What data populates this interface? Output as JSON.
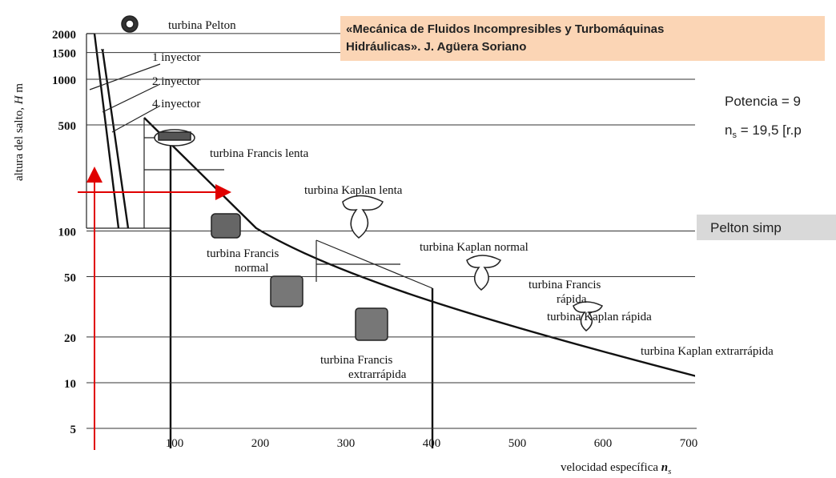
{
  "header": {
    "title_lines": [
      "«Mecánica de Fluidos Incompresibles y Turbomáquinas",
      "Hidráulicas». J. Agüera Soriano"
    ]
  },
  "overlay": {
    "power": "Potencia = 9",
    "ns_symbol": "n",
    "ns_sub": "s",
    "ns_value": " = 19,5 [r.p",
    "result": "Pelton simp"
  },
  "diagram": {
    "y_label": "altura del salto,",
    "y_symbol": "H",
    "y_unit": "m",
    "x_label": "velocidad específica",
    "x_symbol": "n",
    "x_sub": "s",
    "y_ticks": [
      2000,
      1500,
      1000,
      500,
      100,
      50,
      20,
      10,
      5
    ],
    "x_ticks": [
      100,
      200,
      300,
      400,
      500,
      600,
      700
    ],
    "labels": [
      [
        "turbina Pelton"
      ],
      [
        "1 inyector"
      ],
      [
        "2 inyector"
      ],
      [
        "4 inyector"
      ],
      [
        "turbina Francis lenta"
      ],
      [
        "turbina Kaplan lenta"
      ],
      [
        "turbina Francis",
        "normal"
      ],
      [
        "turbina Kaplan normal"
      ],
      [
        "turbina Francis",
        "rápida"
      ],
      [
        "turbina Kaplan rápida"
      ],
      [
        "turbina Francis",
        "extrarrápida"
      ],
      [
        "turbina Kaplan extrarrápida"
      ]
    ]
  }
}
